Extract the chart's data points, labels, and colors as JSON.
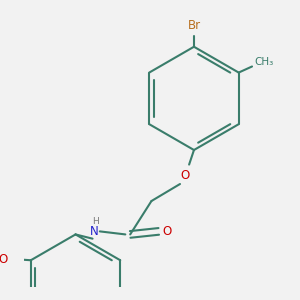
{
  "bg_color": "#f2f2f2",
  "bond_color": "#3a7d6b",
  "bond_lw": 1.5,
  "atom_colors": {
    "Br": "#b87020",
    "O": "#cc0000",
    "N": "#2222cc",
    "H": "#777777"
  },
  "fs_large": 8.5,
  "fs_small": 7.5
}
